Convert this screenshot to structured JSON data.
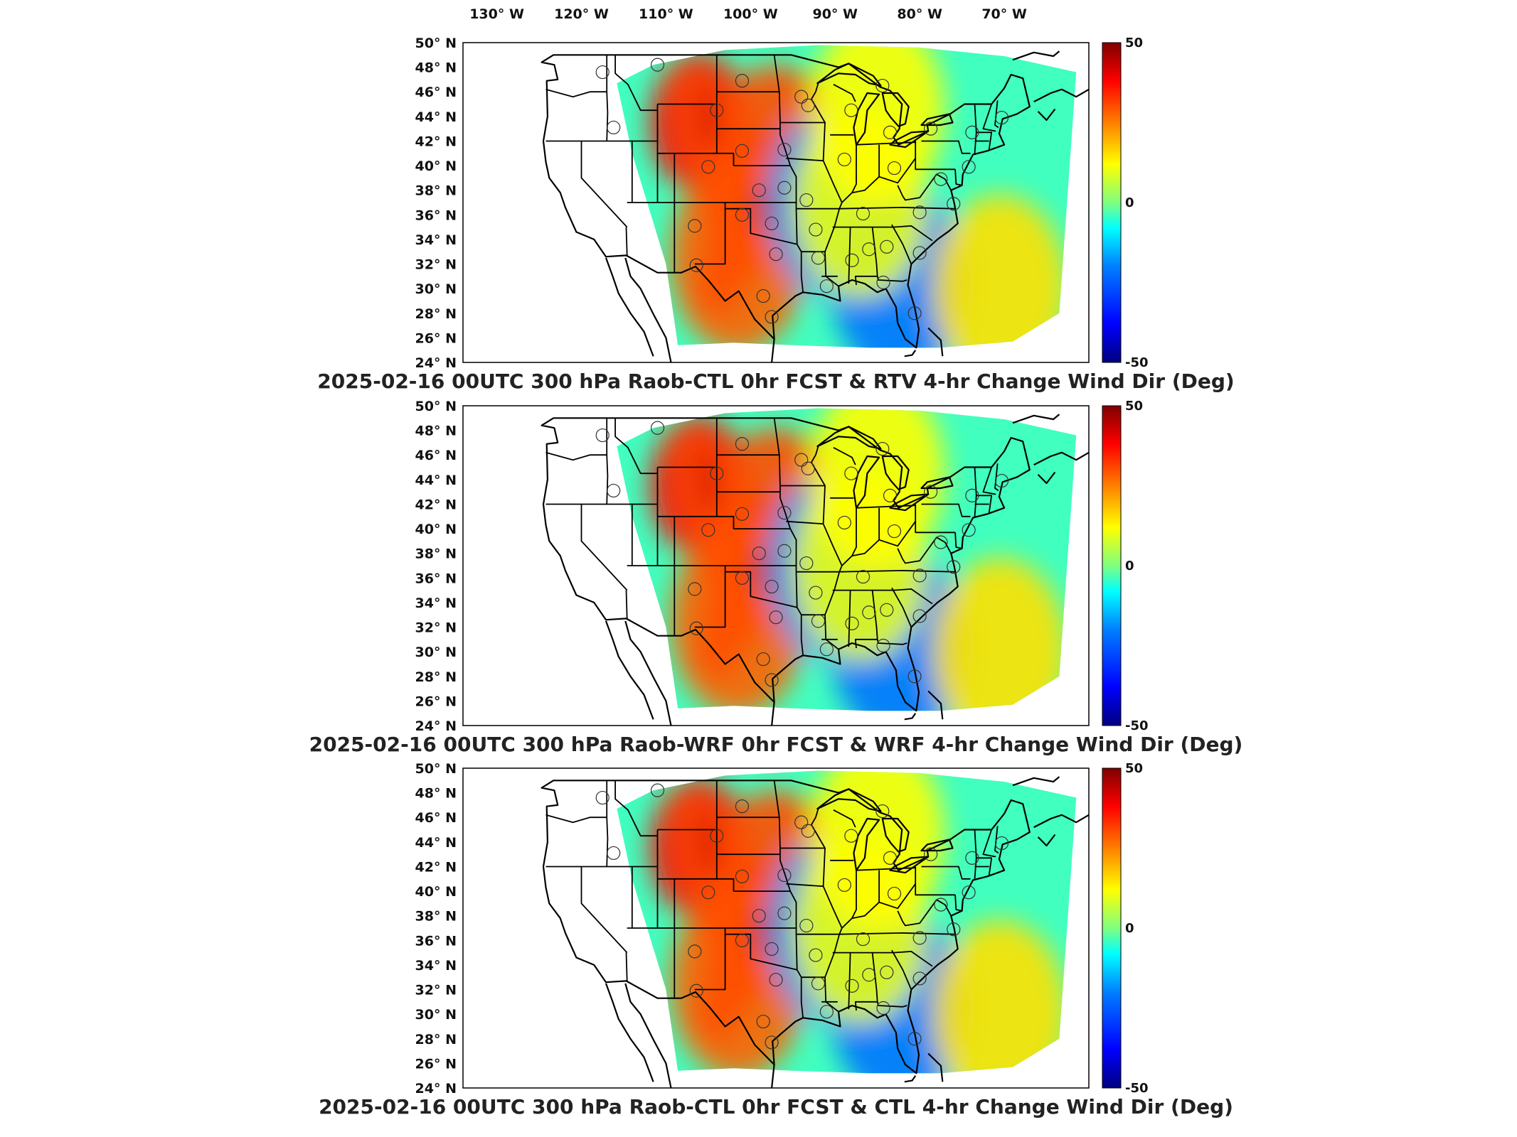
{
  "lon_labels": [
    "130° W",
    "120° W",
    "110° W",
    "100° W",
    "90° W",
    "80° W",
    "70° W"
  ],
  "lat_labels": [
    "50° N",
    "48° N",
    "46° N",
    "44° N",
    "42° N",
    "40° N",
    "38° N",
    "36° N",
    "34° N",
    "32° N",
    "30° N",
    "28° N",
    "26° N",
    "24° N"
  ],
  "colorbar": {
    "max_label": "50",
    "zero_label": "0",
    "min_label": "-50",
    "colors": [
      "#00007f",
      "#0000ff",
      "#007fff",
      "#00ffff",
      "#7fff7f",
      "#ffff00",
      "#ff7f00",
      "#ff0000",
      "#7f0000"
    ]
  },
  "panels": [
    {
      "title": "2025-02-16 00UTC 300 hPa Raob-CTL 0hr FCST & RTV 4-hr Change Wind Dir (Deg)"
    },
    {
      "title": "2025-02-16 00UTC 300 hPa Raob-WRF 0hr FCST & WRF 4-hr Change Wind Dir (Deg)"
    },
    {
      "title": "2025-02-16 00UTC 300 hPa Raob-CTL 0hr FCST & CTL 4-hr Change Wind Dir (Deg)"
    }
  ],
  "raob_station_markers": [
    {
      "lat": 47.6,
      "lon": -117.5
    },
    {
      "lat": 48.2,
      "lon": -111.0
    },
    {
      "lat": 46.9,
      "lon": -101.0
    },
    {
      "lat": 45.6,
      "lon": -94.0
    },
    {
      "lat": 44.5,
      "lon": -104.0
    },
    {
      "lat": 43.1,
      "lon": -116.2
    },
    {
      "lat": 41.2,
      "lon": -101.0
    },
    {
      "lat": 41.3,
      "lon": -96.0
    },
    {
      "lat": 39.9,
      "lon": -105.0
    },
    {
      "lat": 38.0,
      "lon": -99.0
    },
    {
      "lat": 37.2,
      "lon": -93.4
    },
    {
      "lat": 36.0,
      "lon": -101.0
    },
    {
      "lat": 35.3,
      "lon": -97.5
    },
    {
      "lat": 35.1,
      "lon": -106.6
    },
    {
      "lat": 34.8,
      "lon": -92.3
    },
    {
      "lat": 32.8,
      "lon": -97.0
    },
    {
      "lat": 32.5,
      "lon": -92.0
    },
    {
      "lat": 31.9,
      "lon": -106.4
    },
    {
      "lat": 29.4,
      "lon": -98.5
    },
    {
      "lat": 27.7,
      "lon": -97.5
    },
    {
      "lat": 30.2,
      "lon": -91.0
    },
    {
      "lat": 32.3,
      "lon": -88.0
    },
    {
      "lat": 33.2,
      "lon": -86.0
    },
    {
      "lat": 33.4,
      "lon": -83.9
    },
    {
      "lat": 32.9,
      "lon": -80.0
    },
    {
      "lat": 30.5,
      "lon": -84.3
    },
    {
      "lat": 28.0,
      "lon": -80.6
    },
    {
      "lat": 36.1,
      "lon": -86.7
    },
    {
      "lat": 36.2,
      "lon": -80.0
    },
    {
      "lat": 36.9,
      "lon": -76.0
    },
    {
      "lat": 38.9,
      "lon": -77.5
    },
    {
      "lat": 39.8,
      "lon": -83.0
    },
    {
      "lat": 40.5,
      "lon": -88.9
    },
    {
      "lat": 42.7,
      "lon": -83.5
    },
    {
      "lat": 43.0,
      "lon": -78.7
    },
    {
      "lat": 42.7,
      "lon": -73.8
    },
    {
      "lat": 44.5,
      "lon": -88.1
    },
    {
      "lat": 44.9,
      "lon": -93.2
    },
    {
      "lat": 46.5,
      "lon": -84.4
    },
    {
      "lat": 43.9,
      "lon": -70.3
    },
    {
      "lat": 39.9,
      "lon": -74.2
    },
    {
      "lat": 38.2,
      "lon": -96.0
    }
  ],
  "field_features": [
    {
      "lat": 43.5,
      "lon": -106.0,
      "value": 38
    },
    {
      "lat": 37.0,
      "lon": -99.0,
      "value": 45
    },
    {
      "lat": 40.5,
      "lon": -97.0,
      "value": 30
    },
    {
      "lat": 32.5,
      "lon": -101.5,
      "value": 28
    },
    {
      "lat": 37.0,
      "lon": -90.0,
      "value": -18
    },
    {
      "lat": 30.5,
      "lon": -82.5,
      "value": -22
    },
    {
      "lat": 30.0,
      "lon": -70.5,
      "value": 15
    },
    {
      "lat": 37.0,
      "lon": -87.0,
      "value": 10
    },
    {
      "lat": 44.5,
      "lon": -85.0,
      "value": 12
    }
  ]
}
